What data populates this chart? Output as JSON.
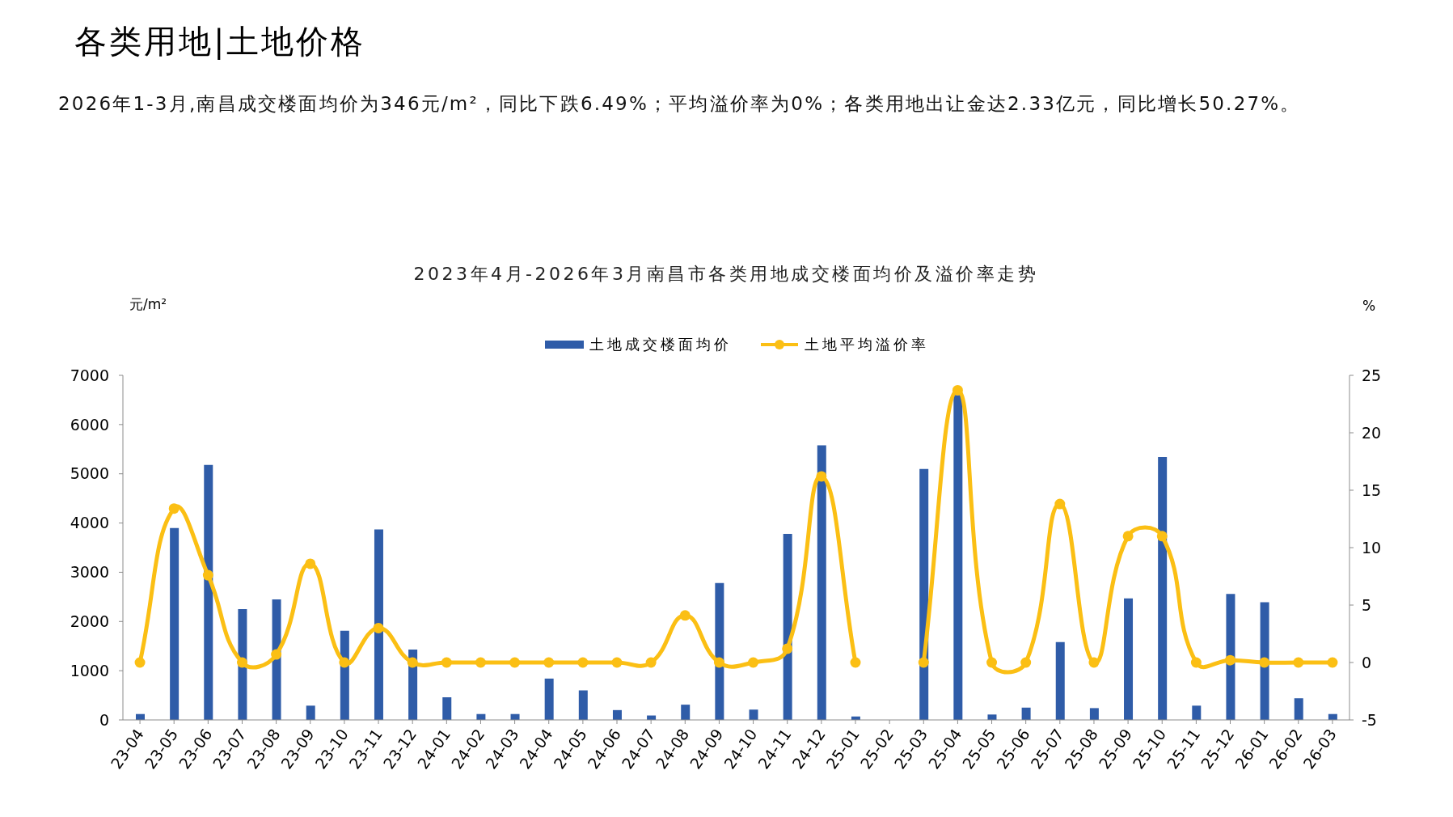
{
  "chart_data": {
    "type": "bar",
    "title": "各类用地|土地价格",
    "subtitle": "2023年4月-2026年3月南昌市各类用地成交楼面均价及溢价率走势",
    "annotations": [
      "2026年1-3月,南昌成交楼面均价为346元/m²，同比下跌6.49%；平均溢价率为0%；各类用地出让金达2.33亿元，同比增长50.27%。"
    ],
    "ylabel": "元/m²",
    "y2label": "%",
    "categories": [
      "23-04",
      "23-05",
      "23-06",
      "23-07",
      "23-08",
      "23-09",
      "23-10",
      "23-11",
      "23-12",
      "24-01",
      "24-02",
      "24-03",
      "24-04",
      "24-05",
      "24-06",
      "24-07",
      "24-08",
      "24-09",
      "24-10",
      "24-11",
      "24-12",
      "25-01",
      "25-02",
      "25-03",
      "25-04",
      "25-05",
      "25-06",
      "25-07",
      "25-08",
      "25-09",
      "25-10",
      "25-11",
      "25-12",
      "26-01",
      "26-02",
      "26-03"
    ],
    "series": [
      {
        "name": "土地成交楼面均价",
        "color": "#2f5ca8",
        "values": [
          120,
          3900,
          5180,
          2250,
          2450,
          290,
          1810,
          3870,
          1430,
          460,
          120,
          120,
          840,
          600,
          200,
          90,
          310,
          2780,
          210,
          3780,
          5580,
          70,
          null,
          5100,
          6600,
          110,
          250,
          1580,
          240,
          2470,
          5340,
          290,
          2560,
          2390,
          440,
          120
        ]
      },
      {
        "name": "土地平均溢价率",
        "type": "line",
        "axis": "y2",
        "color": "#fbbf14",
        "marker": "circle",
        "line_style": "solid",
        "values": [
          0,
          13.4,
          7.6,
          0,
          0.7,
          8.6,
          0,
          3.0,
          0,
          0,
          0,
          0,
          0,
          0,
          0,
          0,
          4.1,
          0,
          0,
          1.2,
          16.2,
          0,
          null,
          0,
          23.7,
          0,
          0,
          13.8,
          0,
          11.0,
          11.0,
          0,
          0.2,
          0,
          0,
          0
        ]
      }
    ],
    "ylim": [
      0,
      7000
    ],
    "yticks": [
      0,
      1000,
      2000,
      3000,
      4000,
      5000,
      6000,
      7000
    ],
    "y2lim": [
      -5,
      25
    ],
    "y2ticks": [
      -5,
      0,
      5,
      10,
      15,
      20,
      25
    ],
    "legend": "top"
  }
}
